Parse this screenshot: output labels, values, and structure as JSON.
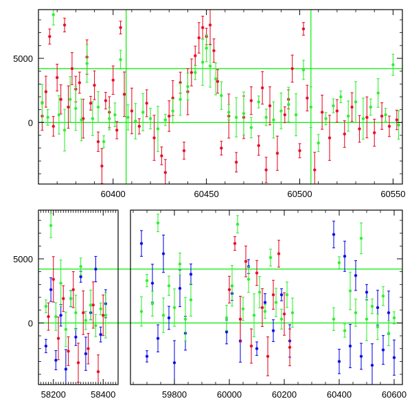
{
  "chart_data": [
    {
      "type": "scatter",
      "panel": "top",
      "xlim": [
        60360,
        60555
      ],
      "ylim": [
        -4800,
        8800
      ],
      "x_ticks": [
        60400,
        60450,
        60500,
        60550
      ],
      "y_ticks": [
        0,
        5000
      ],
      "reference_lines": {
        "horizontal": [
          0,
          4200
        ],
        "vertical": [
          60407,
          60506
        ]
      },
      "reference_line_color": "#00ee00",
      "series": [
        {
          "color": "#e8102a",
          "values": [
            [
              60362,
              500
            ],
            [
              60364,
              2400
            ],
            [
              60366,
              6700
            ],
            [
              60368,
              -300
            ],
            [
              60370,
              3500
            ],
            [
              60372,
              1800
            ],
            [
              60374,
              7600
            ],
            [
              60376,
              1200
            ],
            [
              60378,
              4200
            ],
            [
              60380,
              2600
            ],
            [
              60382,
              3100
            ],
            [
              60384,
              300
            ],
            [
              60386,
              5100
            ],
            [
              60388,
              1500
            ],
            [
              60390,
              2900
            ],
            [
              60392,
              -1500
            ],
            [
              60394,
              -3400
            ],
            [
              60396,
              1700
            ],
            [
              60398,
              800
            ],
            [
              60400,
              3300
            ],
            [
              60402,
              -600
            ],
            [
              60404,
              7400
            ],
            [
              60406,
              2200
            ],
            [
              60410,
              900
            ],
            [
              60414,
              -300
            ],
            [
              60418,
              1500
            ],
            [
              60422,
              -1200
            ],
            [
              60426,
              -2600
            ],
            [
              60428,
              -3900
            ],
            [
              60430,
              500
            ],
            [
              60432,
              1900
            ],
            [
              60436,
              3100
            ],
            [
              60438,
              -2200
            ],
            [
              60440,
              2400
            ],
            [
              60442,
              3900
            ],
            [
              60444,
              5200
            ],
            [
              60446,
              6600
            ],
            [
              60448,
              7400
            ],
            [
              60450,
              6700
            ],
            [
              60452,
              7600
            ],
            [
              60454,
              5600
            ],
            [
              60456,
              3200
            ],
            [
              60458,
              -2000
            ],
            [
              60462,
              500
            ],
            [
              60466,
              -3100
            ],
            [
              60470,
              400
            ],
            [
              60474,
              1700
            ],
            [
              60478,
              -1800
            ],
            [
              60480,
              2700
            ],
            [
              60482,
              -3700
            ],
            [
              60484,
              1300
            ],
            [
              60488,
              -2400
            ],
            [
              60492,
              600
            ],
            [
              60494,
              1800
            ],
            [
              60496,
              4200
            ],
            [
              60500,
              -2200
            ],
            [
              60502,
              7300
            ],
            [
              60504,
              1900
            ],
            [
              60508,
              -3700
            ],
            [
              60512,
              800
            ],
            [
              60516,
              -1200
            ],
            [
              60520,
              900
            ],
            [
              60524,
              -900
            ],
            [
              60528,
              1200
            ],
            [
              60532,
              -500
            ],
            [
              60536,
              400
            ],
            [
              60540,
              -800
            ],
            [
              60544,
              500
            ],
            [
              60548,
              -300
            ],
            [
              60552,
              200
            ]
          ]
        },
        {
          "color": "#33ee33",
          "values": [
            [
              60362,
              1500
            ],
            [
              60365,
              400
            ],
            [
              60368,
              8400
            ],
            [
              60371,
              600
            ],
            [
              60374,
              -600
            ],
            [
              60377,
              1800
            ],
            [
              60380,
              1100
            ],
            [
              60383,
              200
            ],
            [
              60386,
              4600
            ],
            [
              60389,
              300
            ],
            [
              60392,
              1200
            ],
            [
              60395,
              -1500
            ],
            [
              60398,
              300
            ],
            [
              60401,
              600
            ],
            [
              60404,
              4900
            ],
            [
              60408,
              400
            ],
            [
              60412,
              100
            ],
            [
              60416,
              800
            ],
            [
              60420,
              300
            ],
            [
              60424,
              -500
            ],
            [
              60428,
              200
            ],
            [
              60432,
              900
            ],
            [
              60436,
              1800
            ],
            [
              60440,
              2800
            ],
            [
              60444,
              3900
            ],
            [
              60448,
              4700
            ],
            [
              60450,
              5800
            ],
            [
              60452,
              4400
            ],
            [
              60455,
              3400
            ],
            [
              60458,
              2100
            ],
            [
              60462,
              800
            ],
            [
              60466,
              400
            ],
            [
              60470,
              700
            ],
            [
              60474,
              -400
            ],
            [
              60478,
              1600
            ],
            [
              60482,
              400
            ],
            [
              60486,
              200
            ],
            [
              60490,
              900
            ],
            [
              60494,
              1400
            ],
            [
              60498,
              600
            ],
            [
              60502,
              4100
            ],
            [
              60506,
              1200
            ],
            [
              60510,
              -1600
            ],
            [
              60514,
              300
            ],
            [
              60518,
              1300
            ],
            [
              60522,
              2000
            ],
            [
              60526,
              500
            ],
            [
              60530,
              1600
            ],
            [
              60534,
              300
            ],
            [
              60538,
              1200
            ],
            [
              60542,
              2300
            ],
            [
              60546,
              600
            ],
            [
              60550,
              4500
            ],
            [
              60553,
              -200
            ]
          ]
        }
      ]
    },
    {
      "type": "scatter",
      "panel": "bottom",
      "ylim": [
        -4800,
        8800
      ],
      "y_ticks": [
        0,
        5000
      ],
      "x_ticks": [
        58200,
        58400,
        59800,
        60000,
        60200,
        60400,
        60600
      ],
      "x_segments": [
        {
          "xlim": [
            58140,
            58460
          ]
        },
        {
          "xlim": [
            59640,
            60630
          ]
        }
      ],
      "reference_lines": {
        "horizontal": [
          0,
          4200
        ]
      },
      "reference_line_color": "#00ee00",
      "series": [
        {
          "color": "#1010e8",
          "values": [
            [
              58170,
              -1800
            ],
            [
              58190,
              2600
            ],
            [
              58210,
              -2900
            ],
            [
              58230,
              600
            ],
            [
              58250,
              -3600
            ],
            [
              58270,
              1900
            ],
            [
              58290,
              -1100
            ],
            [
              58310,
              3600
            ],
            [
              58330,
              -2400
            ],
            [
              58350,
              800
            ],
            [
              58370,
              4200
            ],
            [
              58390,
              -900
            ],
            [
              58410,
              1500
            ],
            [
              59680,
              6200
            ],
            [
              59700,
              -2600
            ],
            [
              59720,
              3100
            ],
            [
              59740,
              -1200
            ],
            [
              59760,
              5400
            ],
            [
              59780,
              400
            ],
            [
              59800,
              -3100
            ],
            [
              59820,
              2700
            ],
            [
              59840,
              -800
            ],
            [
              59860,
              3800
            ],
            [
              59990,
              -700
            ],
            [
              60010,
              2300
            ],
            [
              60040,
              -1400
            ],
            [
              60070,
              4400
            ],
            [
              60100,
              -2000
            ],
            [
              60130,
              1600
            ],
            [
              60160,
              -600
            ],
            [
              60190,
              2200
            ],
            [
              60220,
              -1400
            ],
            [
              60380,
              6900
            ],
            [
              60400,
              -3000
            ],
            [
              60420,
              5200
            ],
            [
              60440,
              -1800
            ],
            [
              60460,
              3700
            ],
            [
              60480,
              -2600
            ],
            [
              60500,
              2400
            ],
            [
              60520,
              -3300
            ],
            [
              60540,
              1200
            ],
            [
              60560,
              -2100
            ],
            [
              60580,
              800
            ],
            [
              60600,
              -2700
            ]
          ]
        },
        {
          "color": "#e8102a",
          "values": [
            [
              58180,
              500
            ],
            [
              58200,
              3400
            ],
            [
              58220,
              -1200
            ],
            [
              58240,
              1900
            ],
            [
              58260,
              -2200
            ],
            [
              58280,
              2600
            ],
            [
              58300,
              -3100
            ],
            [
              58320,
              800
            ],
            [
              58340,
              -2000
            ],
            [
              58360,
              1400
            ],
            [
              58380,
              -3800
            ],
            [
              58400,
              600
            ],
            [
              60000,
              2600
            ],
            [
              60020,
              6200
            ],
            [
              60040,
              300
            ],
            [
              60060,
              4800
            ],
            [
              60080,
              -1800
            ],
            [
              60100,
              3900
            ],
            [
              60120,
              1200
            ],
            [
              60140,
              -2600
            ],
            [
              60160,
              2200
            ],
            [
              60180,
              5400
            ],
            [
              60200,
              700
            ],
            [
              60220,
              -1900
            ]
          ]
        },
        {
          "color": "#33ee33",
          "values": [
            [
              58170,
              1300
            ],
            [
              58190,
              7600
            ],
            [
              58210,
              500
            ],
            [
              58230,
              3100
            ],
            [
              58250,
              -500
            ],
            [
              58270,
              1900
            ],
            [
              58290,
              800
            ],
            [
              58310,
              4400
            ],
            [
              58330,
              200
            ],
            [
              58350,
              1400
            ],
            [
              58370,
              -200
            ],
            [
              58390,
              1100
            ],
            [
              58410,
              600
            ],
            [
              59680,
              900
            ],
            [
              59700,
              3300
            ],
            [
              59720,
              1500
            ],
            [
              59740,
              7800
            ],
            [
              59760,
              600
            ],
            [
              59780,
              2900
            ],
            [
              59800,
              1200
            ],
            [
              59820,
              4600
            ],
            [
              59840,
              300
            ],
            [
              59860,
              1800
            ],
            [
              59990,
              400
            ],
            [
              60010,
              2900
            ],
            [
              60030,
              7700
            ],
            [
              60050,
              1100
            ],
            [
              60070,
              3400
            ],
            [
              60090,
              600
            ],
            [
              60110,
              2400
            ],
            [
              60130,
              900
            ],
            [
              60150,
              5100
            ],
            [
              60170,
              1600
            ],
            [
              60190,
              300
            ],
            [
              60210,
              2200
            ],
            [
              60230,
              800
            ],
            [
              60380,
              300
            ],
            [
              60400,
              4700
            ],
            [
              60420,
              -600
            ],
            [
              60440,
              2500
            ],
            [
              60460,
              800
            ],
            [
              60480,
              6600
            ],
            [
              60500,
              300
            ],
            [
              60520,
              1300
            ],
            [
              60540,
              -300
            ],
            [
              60560,
              2100
            ],
            [
              60580,
              -800
            ],
            [
              60600,
              400
            ]
          ]
        }
      ]
    }
  ]
}
